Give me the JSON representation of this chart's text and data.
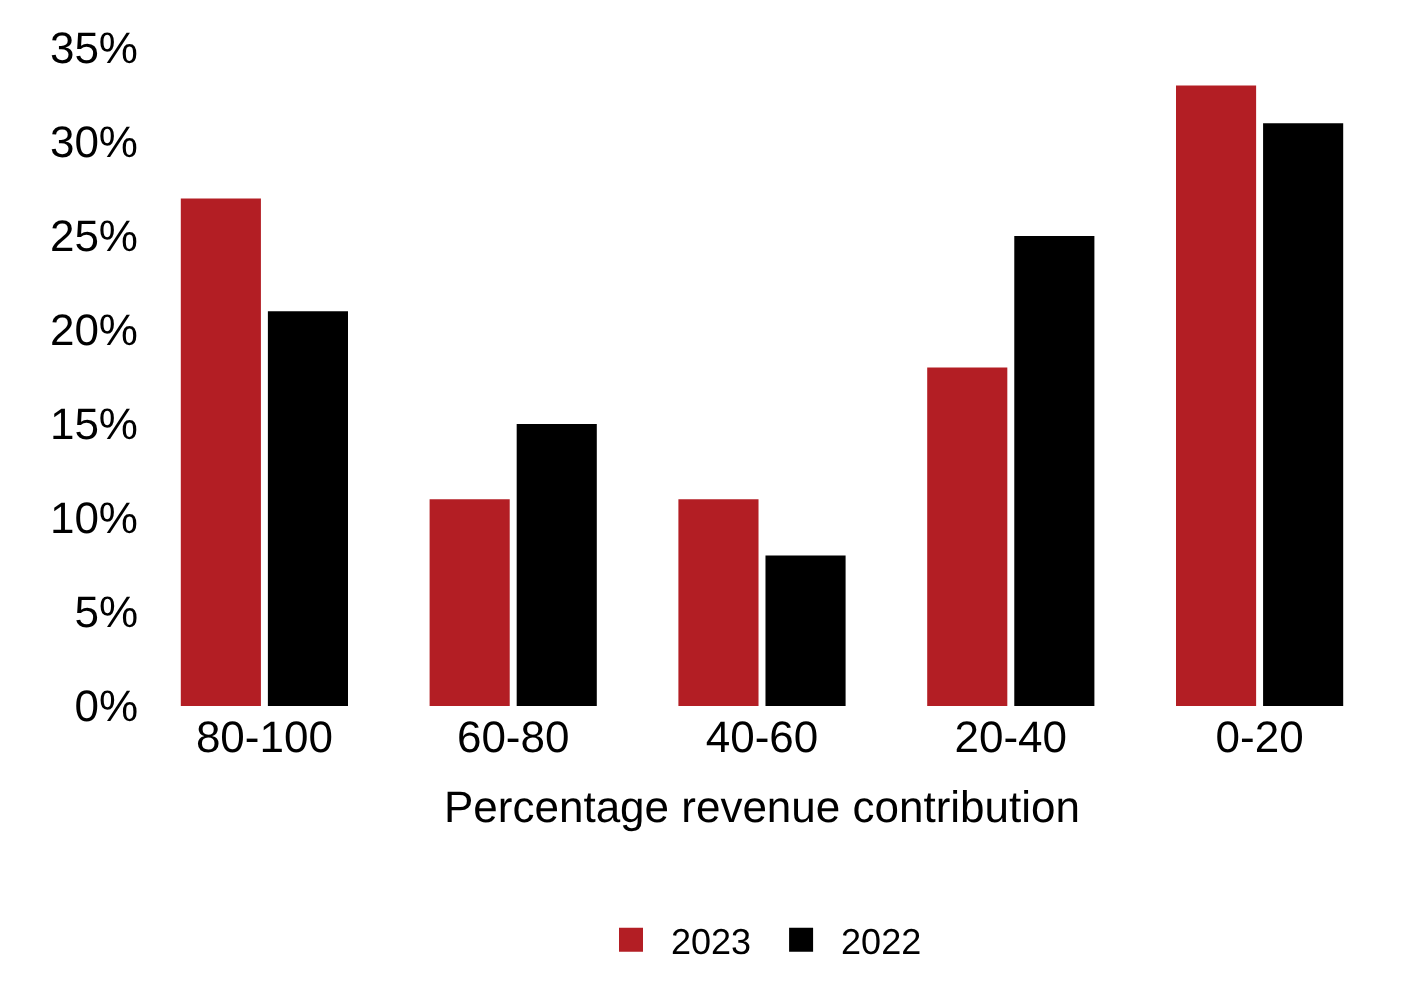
{
  "chart_data": {
    "type": "bar",
    "xlabel": "Percentage revenue contribution",
    "categories": [
      "80-100",
      "60-80",
      "40-60",
      "20-40",
      "0-20"
    ],
    "series": [
      {
        "name": "2023",
        "color": "#b31e24",
        "values": [
          27,
          11,
          11,
          18,
          33
        ]
      },
      {
        "name": "2022",
        "color": "#000000",
        "values": [
          21,
          15,
          8,
          25,
          31
        ]
      }
    ],
    "ylim": [
      0,
      35
    ],
    "yticks": [
      {
        "value": 0,
        "label": "0%"
      },
      {
        "value": 5,
        "label": "5%"
      },
      {
        "value": 10,
        "label": "10%"
      },
      {
        "value": 15,
        "label": "15%"
      },
      {
        "value": 20,
        "label": "20%"
      },
      {
        "value": 25,
        "label": "25%"
      },
      {
        "value": 30,
        "label": "30%"
      },
      {
        "value": 35,
        "label": "35%"
      }
    ],
    "legend": "bottom"
  }
}
